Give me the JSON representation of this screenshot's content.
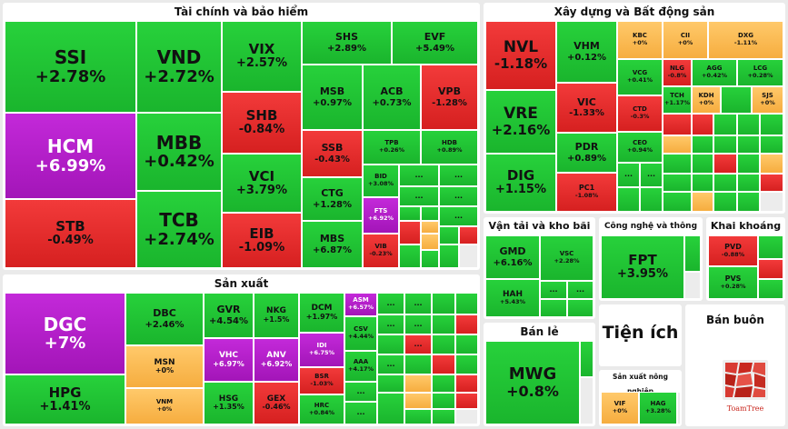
{
  "colors": {
    "up": "#1fc432",
    "down": "#e02a2a",
    "ceiling": "#b41fcb",
    "ref": "#f9b94c",
    "background": "#eaeaea"
  },
  "sectors": {
    "finance": "Tài chính và bảo hiểm",
    "construction": "Xây dựng và Bất động sản",
    "manufacturing": "Sản xuất",
    "transport": "Vận tải và kho bãi",
    "tech": "Công nghệ và thông tin",
    "mining": "Khai khoáng",
    "retail": "Bán lẻ",
    "utilities": "Tiện ích",
    "wholesale": "Bán buôn",
    "agri": "Sản xuất nông nghiệp"
  },
  "more_label": "...",
  "logo_text": "ToamTree",
  "tiles": {
    "SSI": {
      "ticker": "SSI",
      "change": "+2.78%"
    },
    "HCM": {
      "ticker": "HCM",
      "change": "+6.99%"
    },
    "STB": {
      "ticker": "STB",
      "change": "-0.49%"
    },
    "VND": {
      "ticker": "VND",
      "change": "+2.72%"
    },
    "MBB": {
      "ticker": "MBB",
      "change": "+0.42%"
    },
    "TCB": {
      "ticker": "TCB",
      "change": "+2.74%"
    },
    "VIX": {
      "ticker": "VIX",
      "change": "+2.57%"
    },
    "SHB": {
      "ticker": "SHB",
      "change": "-0.84%"
    },
    "VCI": {
      "ticker": "VCI",
      "change": "+3.79%"
    },
    "EIB": {
      "ticker": "EIB",
      "change": "-1.09%"
    },
    "SHS": {
      "ticker": "SHS",
      "change": "+2.89%"
    },
    "EVF": {
      "ticker": "EVF",
      "change": "+5.49%"
    },
    "MSB": {
      "ticker": "MSB",
      "change": "+0.97%"
    },
    "ACB": {
      "ticker": "ACB",
      "change": "+0.73%"
    },
    "VPB": {
      "ticker": "VPB",
      "change": "-1.28%"
    },
    "SSB": {
      "ticker": "SSB",
      "change": "-0.43%"
    },
    "TPB": {
      "ticker": "TPB",
      "change": "+0.26%"
    },
    "HDB": {
      "ticker": "HDB",
      "change": "+0.89%"
    },
    "CTG": {
      "ticker": "CTG",
      "change": "+1.28%"
    },
    "BID": {
      "ticker": "BID",
      "change": "+3.08%"
    },
    "FTS": {
      "ticker": "FTS",
      "change": "+6.92%"
    },
    "MBS": {
      "ticker": "MBS",
      "change": "+6.87%"
    },
    "VIB": {
      "ticker": "VIB",
      "change": "-0.23%"
    },
    "NVL": {
      "ticker": "NVL",
      "change": "-1.18%"
    },
    "VRE": {
      "ticker": "VRE",
      "change": "+2.16%"
    },
    "DIG": {
      "ticker": "DIG",
      "change": "+1.15%"
    },
    "VHM": {
      "ticker": "VHM",
      "change": "+0.12%"
    },
    "VIC": {
      "ticker": "VIC",
      "change": "-1.33%"
    },
    "PDR": {
      "ticker": "PDR",
      "change": "+0.89%"
    },
    "PC1": {
      "ticker": "PC1",
      "change": "-1.08%"
    },
    "KBC": {
      "ticker": "KBC",
      "change": "+0%"
    },
    "CII": {
      "ticker": "CII",
      "change": "+0%"
    },
    "DXG": {
      "ticker": "DXG",
      "change": "-1.11%"
    },
    "VCG": {
      "ticker": "VCG",
      "change": "+0.41%"
    },
    "NLG": {
      "ticker": "NLG",
      "change": "-0.8%"
    },
    "AGG": {
      "ticker": "AGG",
      "change": "+0.42%"
    },
    "LCG": {
      "ticker": "LCG",
      "change": "+0.28%"
    },
    "TCH": {
      "ticker": "TCH",
      "change": "+1.17%"
    },
    "KDH": {
      "ticker": "KDH",
      "change": "+0%"
    },
    "SJS": {
      "ticker": "SJS",
      "change": "+0%"
    },
    "CTD": {
      "ticker": "CTD",
      "change": "-0.3%"
    },
    "CEO": {
      "ticker": "CEO",
      "change": "+0.94%"
    },
    "GMD": {
      "ticker": "GMD",
      "change": "+6.16%"
    },
    "HAH": {
      "ticker": "HAH",
      "change": "+5.43%"
    },
    "VSC": {
      "ticker": "VSC",
      "change": "+2.28%"
    },
    "FPT": {
      "ticker": "FPT",
      "change": "+3.95%"
    },
    "PVD": {
      "ticker": "PVD",
      "change": "-0.88%"
    },
    "PVS": {
      "ticker": "PVS",
      "change": "+0.28%"
    },
    "MWG": {
      "ticker": "MWG",
      "change": "+0.8%"
    },
    "VIF": {
      "ticker": "VIF",
      "change": "+0%"
    },
    "HAG": {
      "ticker": "HAG",
      "change": "+3.28%"
    },
    "DGC": {
      "ticker": "DGC",
      "change": "+7%"
    },
    "HPG": {
      "ticker": "HPG",
      "change": "+1.41%"
    },
    "DBC": {
      "ticker": "DBC",
      "change": "+2.46%"
    },
    "MSN": {
      "ticker": "MSN",
      "change": "+0%"
    },
    "VNM": {
      "ticker": "VNM",
      "change": "+0%"
    },
    "GVR": {
      "ticker": "GVR",
      "change": "+4.54%"
    },
    "VHC": {
      "ticker": "VHC",
      "change": "+6.97%"
    },
    "HSG": {
      "ticker": "HSG",
      "change": "+1.35%"
    },
    "NKG": {
      "ticker": "NKG",
      "change": "+1.5%"
    },
    "ANV": {
      "ticker": "ANV",
      "change": "+6.92%"
    },
    "GEX": {
      "ticker": "GEX",
      "change": "-0.46%"
    },
    "DCM": {
      "ticker": "DCM",
      "change": "+1.97%"
    },
    "IDI": {
      "ticker": "IDI",
      "change": "+6.75%"
    },
    "BSR": {
      "ticker": "BSR",
      "change": "-1.03%"
    },
    "HRC": {
      "ticker": "HRC",
      "change": "+0.84%"
    },
    "ASM": {
      "ticker": "ASM",
      "change": "+6.57%"
    },
    "CSV": {
      "ticker": "CSV",
      "change": "+4.44%"
    },
    "AAA": {
      "ticker": "AAA",
      "change": "+4.17%"
    }
  }
}
